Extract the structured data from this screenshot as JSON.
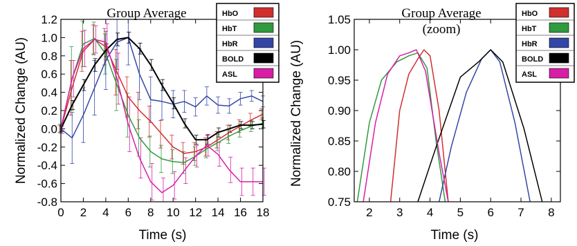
{
  "colors": {
    "HbO": "#d12e2e",
    "HbT": "#2f9a3e",
    "HbR": "#3346a6",
    "BOLD": "#000000",
    "ASL": "#d81ea6"
  },
  "chart_data": [
    {
      "type": "line",
      "title": "Group Average",
      "subtitle": "",
      "xlabel": "Time (s)",
      "ylabel": "Normalized Change (AU)",
      "xlim": [
        0,
        18
      ],
      "ylim": [
        -0.8,
        1.2
      ],
      "x_ticks": [
        "0",
        "2",
        "4",
        "6",
        "8",
        "10",
        "12",
        "14",
        "16",
        "18"
      ],
      "y_ticks": [
        "-0.8",
        "-0.6",
        "-0.4",
        "-0.2",
        "0.0",
        "0.2",
        "0.4",
        "0.6",
        "0.8",
        "1.0",
        "1.2"
      ],
      "error_bars": true,
      "grid": false,
      "legend_position": "top-right",
      "x": [
        0,
        1,
        2,
        3,
        4,
        5,
        6,
        7,
        8,
        9,
        10,
        11,
        12,
        13,
        14,
        15,
        16,
        17,
        18
      ],
      "series": [
        {
          "name": "HbO",
          "values": [
            0,
            0.45,
            0.85,
            0.98,
            0.9,
            0.62,
            0.35,
            0.2,
            0.08,
            -0.06,
            -0.2,
            -0.27,
            -0.25,
            -0.2,
            -0.12,
            -0.04,
            0.03,
            0.1,
            0.16
          ],
          "error": [
            0.04,
            0.3,
            0.22,
            0.16,
            0.2,
            0.25,
            0.22,
            0.2,
            0.17,
            0.15,
            0.13,
            0.12,
            0.1,
            0.1,
            0.09,
            0.08,
            0.07,
            0.07,
            0.06
          ]
        },
        {
          "name": "HbT",
          "values": [
            0,
            0.55,
            0.93,
            0.99,
            0.82,
            0.48,
            0.15,
            -0.1,
            -0.25,
            -0.33,
            -0.36,
            -0.37,
            -0.3,
            -0.22,
            -0.15,
            -0.08,
            -0.02,
            0.03,
            0.06
          ],
          "error": [
            0.04,
            0.35,
            0.25,
            0.18,
            0.22,
            0.28,
            0.24,
            0.2,
            0.17,
            0.15,
            0.13,
            0.12,
            0.1,
            0.1,
            0.09,
            0.08,
            0.07,
            0.06,
            0.06
          ]
        },
        {
          "name": "HbR",
          "values": [
            0,
            -0.1,
            0.15,
            0.45,
            0.75,
            0.95,
            1.0,
            0.6,
            0.32,
            0.3,
            0.27,
            0.3,
            0.24,
            0.36,
            0.26,
            0.25,
            0.33,
            0.36,
            0.3
          ],
          "error": [
            0.05,
            0.28,
            0.3,
            0.3,
            0.32,
            0.3,
            0.3,
            0.28,
            0.25,
            0.2,
            0.15,
            0.12,
            0.1,
            0.1,
            0.09,
            0.08,
            0.07,
            0.06,
            0.06
          ]
        },
        {
          "name": "BOLD",
          "values": [
            0,
            0.26,
            0.48,
            0.7,
            0.86,
            0.98,
            1.0,
            0.88,
            0.7,
            0.48,
            0.28,
            0.06,
            -0.12,
            -0.12,
            -0.04,
            0.0,
            0.04,
            0.04,
            0.05
          ],
          "error": [
            0.03,
            0.05,
            0.06,
            0.07,
            0.07,
            0.07,
            0.06,
            0.06,
            0.06,
            0.06,
            0.06,
            0.05,
            0.05,
            0.05,
            0.05,
            0.04,
            0.04,
            0.04,
            0.04
          ]
        },
        {
          "name": "ASL",
          "values": [
            0,
            0.55,
            0.88,
            0.98,
            0.95,
            0.55,
            0.05,
            -0.32,
            -0.58,
            -0.7,
            -0.62,
            -0.46,
            -0.3,
            -0.18,
            -0.28,
            -0.45,
            -0.58,
            -0.58,
            -0.58
          ],
          "error": [
            0.05,
            0.2,
            0.2,
            0.15,
            0.2,
            0.28,
            0.3,
            0.22,
            0.2,
            0.16,
            0.15,
            0.14,
            0.12,
            0.12,
            0.13,
            0.14,
            0.15,
            0.15,
            0.15
          ]
        }
      ],
      "legend": [
        "HbO",
        "HbT",
        "HbR",
        "BOLD",
        "ASL"
      ]
    },
    {
      "type": "line",
      "title": "Group Average",
      "subtitle": "(zoom)",
      "xlabel": "Time (s)",
      "ylabel": "Normalized Change (AU)",
      "xlim": [
        1.5,
        8.3
      ],
      "ylim": [
        0.75,
        1.05
      ],
      "x_ticks": [
        "2",
        "3",
        "4",
        "5",
        "6",
        "7",
        "8"
      ],
      "y_ticks": [
        "0.75",
        "0.80",
        "0.85",
        "0.90",
        "0.95",
        "1.00",
        "1.05"
      ],
      "grid": false,
      "legend_position": "top-right",
      "series": [
        {
          "name": "HbO",
          "points": [
            [
              2.7,
              0.75
            ],
            [
              3.0,
              0.9
            ],
            [
              3.3,
              0.96
            ],
            [
              3.6,
              0.985
            ],
            [
              3.8,
              1.0
            ],
            [
              4.0,
              0.99
            ],
            [
              4.3,
              0.9
            ],
            [
              4.6,
              0.75
            ]
          ]
        },
        {
          "name": "HbT",
          "points": [
            [
              1.6,
              0.75
            ],
            [
              2.0,
              0.88
            ],
            [
              2.4,
              0.95
            ],
            [
              2.9,
              0.98
            ],
            [
              3.3,
              0.99
            ],
            [
              3.6,
              0.995
            ],
            [
              3.9,
              0.97
            ],
            [
              4.2,
              0.85
            ],
            [
              4.5,
              0.75
            ]
          ]
        },
        {
          "name": "HbR",
          "points": [
            [
              4.3,
              0.75
            ],
            [
              4.7,
              0.84
            ],
            [
              5.2,
              0.93
            ],
            [
              5.7,
              0.985
            ],
            [
              6.0,
              1.0
            ],
            [
              6.3,
              0.98
            ],
            [
              6.8,
              0.88
            ],
            [
              7.3,
              0.75
            ]
          ]
        },
        {
          "name": "BOLD",
          "points": [
            [
              3.6,
              0.75
            ],
            [
              4.2,
              0.84
            ],
            [
              5.0,
              0.955
            ],
            [
              5.6,
              0.98
            ],
            [
              6.0,
              1.0
            ],
            [
              6.4,
              0.98
            ],
            [
              7.1,
              0.87
            ],
            [
              7.7,
              0.75
            ]
          ]
        },
        {
          "name": "ASL",
          "points": [
            [
              1.8,
              0.75
            ],
            [
              2.2,
              0.88
            ],
            [
              2.6,
              0.96
            ],
            [
              3.0,
              0.99
            ],
            [
              3.3,
              0.995
            ],
            [
              3.55,
              1.0
            ],
            [
              3.85,
              0.965
            ],
            [
              4.3,
              0.83
            ],
            [
              4.6,
              0.75
            ]
          ]
        }
      ],
      "legend": [
        "HbO",
        "HbT",
        "HbR",
        "BOLD",
        "ASL"
      ]
    }
  ]
}
